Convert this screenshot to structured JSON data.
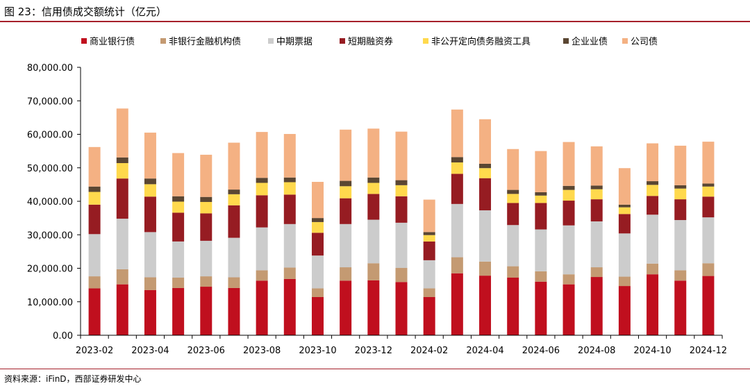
{
  "figure": {
    "title": "图 23：信用债成交额统计（亿元）",
    "source": "资料来源：iFinD，西部证券研发中心"
  },
  "chart_data": {
    "type": "bar",
    "stacked": true,
    "title": "信用债成交额统计（亿元）",
    "xlabel": "",
    "ylabel": "",
    "ylim": [
      0,
      80000
    ],
    "yticks": [
      "0.00",
      "10,000.00",
      "20,000.00",
      "30,000.00",
      "40,000.00",
      "50,000.00",
      "60,000.00",
      "70,000.00",
      "80,000.00"
    ],
    "ytick_values": [
      0,
      10000,
      20000,
      30000,
      40000,
      50000,
      60000,
      70000,
      80000
    ],
    "grid": false,
    "legend_position": "top",
    "categories": [
      "2023-02",
      "2023-03",
      "2023-04",
      "2023-05",
      "2023-06",
      "2023-07",
      "2023-08",
      "2023-09",
      "2023-10",
      "2023-11",
      "2023-12",
      "2024-01",
      "2024-02",
      "2024-03",
      "2024-04",
      "2024-05",
      "2024-06",
      "2024-07",
      "2024-08",
      "2024-09",
      "2024-10",
      "2024-11",
      "2024-12"
    ],
    "xtick_labels": [
      "2023-02",
      "2023-04",
      "2023-06",
      "2023-08",
      "2023-10",
      "2023-12",
      "2024-02",
      "2024-04",
      "2024-06",
      "2024-08",
      "2024-10",
      "2024-12"
    ],
    "series": [
      {
        "name": "商业银行债",
        "color": "#c00f1e",
        "values": [
          14000,
          15200,
          13500,
          14100,
          14500,
          14100,
          16300,
          16800,
          11400,
          16300,
          16400,
          15900,
          11400,
          18500,
          17800,
          17200,
          16000,
          15200,
          17400,
          14700,
          18200,
          16300,
          17700
        ]
      },
      {
        "name": "非银行金融机构债",
        "color": "#c49a72",
        "values": [
          3600,
          4500,
          3800,
          3100,
          3100,
          3200,
          3100,
          3400,
          2600,
          4000,
          5100,
          4200,
          2600,
          4800,
          4200,
          3400,
          3100,
          3000,
          2900,
          2800,
          3200,
          3100,
          3800
        ]
      },
      {
        "name": "中期票据",
        "color": "#cccccc",
        "values": [
          12600,
          15100,
          13500,
          10800,
          10600,
          11800,
          12800,
          13000,
          9800,
          12900,
          13000,
          13500,
          8400,
          15900,
          15300,
          12300,
          12500,
          14600,
          13700,
          12900,
          14600,
          15000,
          13700
        ]
      },
      {
        "name": "短期融资券",
        "color": "#961c22",
        "values": [
          8800,
          12000,
          10600,
          8600,
          8200,
          9700,
          9600,
          8800,
          6800,
          7700,
          7700,
          7900,
          5600,
          9000,
          9600,
          6600,
          7900,
          7400,
          6600,
          5800,
          5600,
          6200,
          6200
        ]
      },
      {
        "name": "非公开定向债务融资工具",
        "color": "#ffd94d",
        "values": [
          3800,
          4600,
          3700,
          3300,
          3400,
          3300,
          3700,
          3700,
          3200,
          3600,
          3300,
          3300,
          1900,
          3400,
          3000,
          2700,
          2200,
          3200,
          3000,
          2000,
          3300,
          3200,
          3000
        ]
      },
      {
        "name": "企业业债",
        "color": "#5a4632",
        "values": [
          1600,
          1700,
          1700,
          1600,
          1500,
          1400,
          1500,
          1400,
          1200,
          1600,
          1600,
          1500,
          900,
          1600,
          1300,
          1200,
          1000,
          1200,
          1100,
          800,
          1100,
          1000,
          900
        ]
      },
      {
        "name": "公司债",
        "color": "#f4b183",
        "values": [
          11800,
          14600,
          13700,
          12900,
          12600,
          14000,
          13700,
          13000,
          10800,
          15300,
          14600,
          14500,
          9700,
          14200,
          13300,
          12200,
          12300,
          13100,
          11700,
          10900,
          11300,
          11800,
          12500
        ]
      }
    ]
  }
}
